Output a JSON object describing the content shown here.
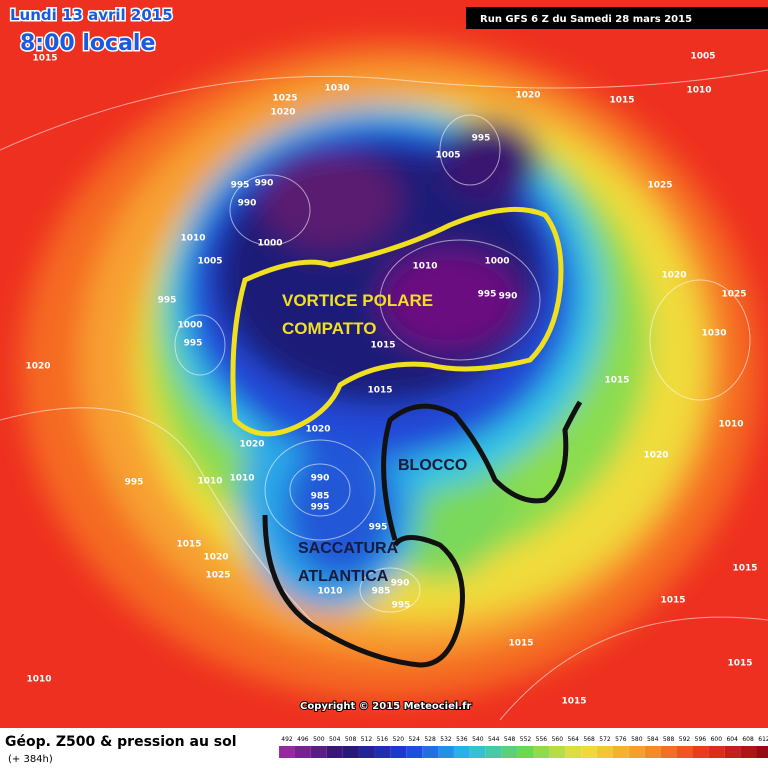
{
  "header": {
    "date": "Lundi 13 avril 2015",
    "time": "8:00 locale",
    "run": "Run GFS 6 Z du Samedi 28 mars 2015"
  },
  "annotations": {
    "vortex_line1": "VORTICE POLARE",
    "vortex_line2": "COMPATTO",
    "block": "BLOCCO",
    "trough_line1": "SACCATURA",
    "trough_line2": "ATLANTICA"
  },
  "pressure_labels": [
    "1015",
    "1025",
    "1030",
    "1020",
    "1020",
    "1015",
    "1005",
    "1010",
    "995",
    "1005",
    "995",
    "990",
    "990",
    "1000",
    "1010",
    "1005",
    "1010",
    "1000",
    "995",
    "990",
    "1025",
    "1020",
    "1025",
    "1030",
    "995",
    "1000",
    "995",
    "1020",
    "1015",
    "1015",
    "1015",
    "1010",
    "1020",
    "1020",
    "1020",
    "995",
    "1010",
    "1010",
    "990",
    "985",
    "995",
    "995",
    "1015",
    "1020",
    "1025",
    "1010",
    "985",
    "990",
    "995",
    "1015",
    "1015",
    "1015",
    "1015",
    "1010",
    "1015"
  ],
  "copyright": "Copyright © 2015 Meteociel.fr",
  "footer": {
    "title": "Géop. Z500 & pression au sol",
    "lead": "(+ 384h)"
  },
  "scale": {
    "values": [
      492,
      496,
      500,
      504,
      508,
      512,
      516,
      520,
      524,
      528,
      532,
      536,
      540,
      544,
      548,
      552,
      556,
      560,
      564,
      568,
      572,
      576,
      580,
      584,
      588,
      592,
      596,
      600,
      604,
      608,
      612
    ]
  }
}
